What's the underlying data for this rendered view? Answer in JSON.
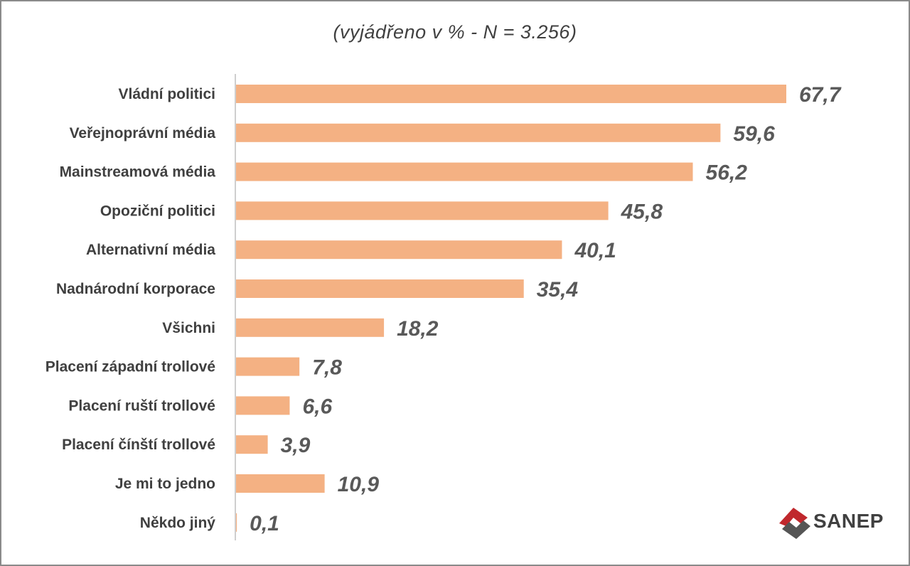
{
  "subtitle": "(vyjádřeno v % - N = 3.256)",
  "logo": {
    "text": "SANEP",
    "accent": "#c0282d",
    "dark": "#555555"
  },
  "colors": {
    "bar": "#f4b183",
    "axis": "#bfbfbf"
  },
  "chart_data": {
    "type": "bar",
    "orientation": "horizontal",
    "title": "",
    "subtitle": "(vyjádřeno v % - N = 3.256)",
    "xlabel": "",
    "ylabel": "",
    "xlim": [
      0,
      70
    ],
    "grid": false,
    "categories": [
      "Vládní politici",
      "Veřejnoprávní média",
      "Mainstreamová média",
      "Opoziční politici",
      "Alternativní média",
      "Nadnárodní korporace",
      "Všichni",
      "Placení západní trollové",
      "Placení ruští trollové",
      "Placení čínští trollové",
      "Je mi to jedno",
      "Někdo jiný"
    ],
    "values": [
      67.7,
      59.6,
      56.2,
      45.8,
      40.1,
      35.4,
      18.2,
      7.8,
      6.6,
      3.9,
      10.9,
      0.1
    ],
    "value_labels": [
      "67,7",
      "59,6",
      "56,2",
      "45,8",
      "40,1",
      "35,4",
      "18,2",
      "7,8",
      "6,6",
      "3,9",
      "10,9",
      "0,1"
    ]
  }
}
